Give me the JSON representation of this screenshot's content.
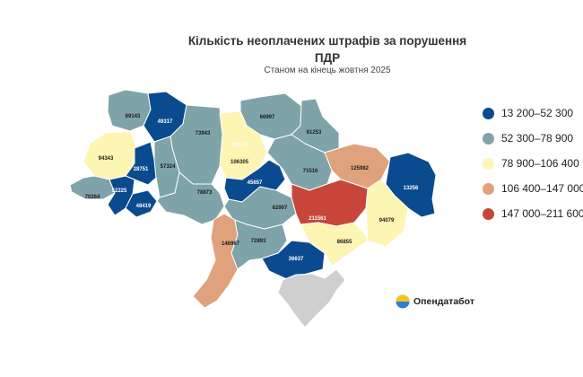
{
  "title_line1": "Кількість неоплачених штрафів за порушення",
  "title_line2": "ПДР",
  "subtitle": "Станом на кінець жовтня 2025",
  "legend": [
    {
      "label": "13 200–52 300",
      "color": "#0a4b8f"
    },
    {
      "label": "52 300–78 900",
      "color": "#7ea3a8"
    },
    {
      "label": "78 900–106 400",
      "color": "#fdf5b3"
    },
    {
      "label": "106 400–147 000",
      "color": "#e0a27c"
    },
    {
      "label": "147 000–211 600",
      "color": "#c8453a"
    }
  ],
  "regions": [
    {
      "name": "volyn",
      "value": "69143",
      "color": "#7ea3a8"
    },
    {
      "name": "rivne",
      "value": "49317",
      "color": "#0a4b8f"
    },
    {
      "name": "zhytomyr",
      "value": "73943",
      "color": "#7ea3a8"
    },
    {
      "name": "kyiv-city",
      "value": "193777",
      "color": "#c8453a"
    },
    {
      "name": "chernihiv",
      "value": "66997",
      "color": "#7ea3a8"
    },
    {
      "name": "sumy",
      "value": "61253",
      "color": "#7ea3a8"
    },
    {
      "name": "lviv",
      "value": "94343",
      "color": "#fdf5b3"
    },
    {
      "name": "ternopil",
      "value": "28751",
      "color": "#0a4b8f"
    },
    {
      "name": "khmelnytskyi",
      "value": "57324",
      "color": "#7ea3a8"
    },
    {
      "name": "kyiv-oblast",
      "value": "106305",
      "color": "#fdf5b3"
    },
    {
      "name": "poltava",
      "value": "71516",
      "color": "#7ea3a8"
    },
    {
      "name": "kharkiv",
      "value": "125982",
      "color": "#e0a27c"
    },
    {
      "name": "luhansk",
      "value": "13256",
      "color": "#0a4b8f"
    },
    {
      "name": "zakarpattia",
      "value": "70264",
      "color": "#7ea3a8"
    },
    {
      "name": "ivano-frankivsk",
      "value": "52225",
      "color": "#0a4b8f"
    },
    {
      "name": "chernivtsi",
      "value": "48419",
      "color": "#0a4b8f"
    },
    {
      "name": "vinnytsia",
      "value": "78873",
      "color": "#7ea3a8"
    },
    {
      "name": "cherkasy",
      "value": "45657",
      "color": "#0a4b8f"
    },
    {
      "name": "kirovohrad",
      "value": "62907",
      "color": "#7ea3a8"
    },
    {
      "name": "dnipropetrovsk",
      "value": "211561",
      "color": "#c8453a"
    },
    {
      "name": "donetsk",
      "value": "94079",
      "color": "#fdf5b3"
    },
    {
      "name": "odesa",
      "value": "146967",
      "color": "#e0a27c"
    },
    {
      "name": "mykolaiv",
      "value": "72893",
      "color": "#7ea3a8"
    },
    {
      "name": "kherson",
      "value": "36637",
      "color": "#0a4b8f"
    },
    {
      "name": "zaporizhzhia",
      "value": "86855",
      "color": "#fdf5b3"
    },
    {
      "name": "crimea",
      "value": "",
      "color": "#cfcfcf"
    }
  ],
  "brand": {
    "name": "Опендатабот",
    "colors": [
      "#f5c518",
      "#2f7fd6"
    ]
  }
}
